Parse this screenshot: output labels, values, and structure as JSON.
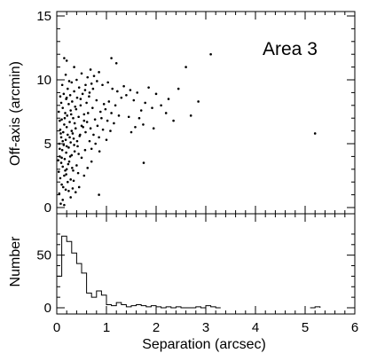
{
  "chart_data": [
    {
      "type": "scatter",
      "ylabel": "Off-axis (arcmin)",
      "annotation": "Area 3",
      "xlim": [
        0,
        6
      ],
      "ylim": [
        0,
        15
      ],
      "x_ticks": [
        "0",
        "1",
        "2",
        "3",
        "4",
        "5",
        "6"
      ],
      "y_ticks": [
        "0",
        "5",
        "10",
        "15"
      ],
      "points": [
        [
          0.08,
          0.3
        ],
        [
          0.12,
          0.6
        ],
        [
          0.05,
          1.1
        ],
        [
          0.18,
          1.4
        ],
        [
          0.1,
          1.8
        ],
        [
          0.22,
          2.0
        ],
        [
          0.07,
          2.3
        ],
        [
          0.15,
          2.5
        ],
        [
          0.28,
          2.2
        ],
        [
          0.04,
          2.8
        ],
        [
          0.2,
          3.0
        ],
        [
          0.12,
          3.2
        ],
        [
          0.33,
          2.9
        ],
        [
          0.09,
          3.5
        ],
        [
          0.25,
          3.6
        ],
        [
          0.16,
          3.8
        ],
        [
          0.4,
          3.3
        ],
        [
          0.06,
          4.0
        ],
        [
          0.3,
          4.1
        ],
        [
          0.19,
          4.3
        ],
        [
          0.11,
          4.5
        ],
        [
          0.36,
          4.4
        ],
        [
          0.24,
          4.7
        ],
        [
          0.14,
          4.9
        ],
        [
          0.05,
          5.0
        ],
        [
          0.42,
          4.8
        ],
        [
          0.28,
          5.1
        ],
        [
          0.18,
          5.3
        ],
        [
          0.09,
          5.5
        ],
        [
          0.34,
          5.4
        ],
        [
          0.22,
          5.7
        ],
        [
          0.13,
          5.9
        ],
        [
          0.46,
          5.6
        ],
        [
          0.3,
          6.0
        ],
        [
          0.07,
          6.1
        ],
        [
          0.2,
          6.3
        ],
        [
          0.38,
          6.2
        ],
        [
          0.15,
          6.5
        ],
        [
          0.26,
          6.7
        ],
        [
          0.5,
          6.4
        ],
        [
          0.1,
          6.9
        ],
        [
          0.33,
          7.0
        ],
        [
          0.21,
          7.2
        ],
        [
          0.44,
          7.1
        ],
        [
          0.17,
          7.4
        ],
        [
          0.28,
          7.6
        ],
        [
          0.55,
          7.3
        ],
        [
          0.12,
          7.8
        ],
        [
          0.37,
          7.9
        ],
        [
          0.24,
          8.1
        ],
        [
          0.48,
          8.0
        ],
        [
          0.31,
          8.3
        ],
        [
          0.6,
          8.2
        ],
        [
          0.19,
          8.5
        ],
        [
          0.41,
          8.6
        ],
        [
          0.27,
          8.8
        ],
        [
          0.52,
          8.9
        ],
        [
          0.35,
          9.1
        ],
        [
          0.66,
          9.0
        ],
        [
          0.22,
          9.3
        ],
        [
          0.45,
          9.4
        ],
        [
          0.58,
          9.6
        ],
        [
          0.3,
          9.8
        ],
        [
          0.7,
          9.7
        ],
        [
          0.4,
          10.0
        ],
        [
          0.62,
          10.2
        ],
        [
          0.18,
          10.4
        ],
        [
          0.5,
          10.5
        ],
        [
          0.75,
          10.3
        ],
        [
          0.2,
          11.5
        ],
        [
          0.35,
          11.0
        ],
        [
          0.85,
          10.6
        ],
        [
          0.68,
          10.8
        ],
        [
          0.15,
          11.7
        ],
        [
          1.1,
          11.7
        ],
        [
          1.2,
          11.3
        ],
        [
          0.55,
          6.8
        ],
        [
          0.63,
          7.4
        ],
        [
          0.72,
          7.8
        ],
        [
          0.8,
          8.4
        ],
        [
          0.68,
          6.2
        ],
        [
          0.77,
          6.9
        ],
        [
          0.88,
          7.5
        ],
        [
          0.95,
          8.1
        ],
        [
          0.58,
          5.9
        ],
        [
          0.66,
          5.2
        ],
        [
          0.74,
          5.7
        ],
        [
          0.82,
          6.4
        ],
        [
          0.9,
          7.0
        ],
        [
          0.98,
          7.7
        ],
        [
          1.05,
          8.3
        ],
        [
          0.85,
          5.5
        ],
        [
          0.93,
          6.1
        ],
        [
          1.02,
          6.8
        ],
        [
          1.1,
          7.4
        ],
        [
          1.18,
          8.0
        ],
        [
          0.7,
          4.6
        ],
        [
          0.78,
          5.0
        ],
        [
          0.86,
          4.4
        ],
        [
          1.0,
          5.3
        ],
        [
          1.08,
          6.0
        ],
        [
          1.15,
          6.6
        ],
        [
          1.25,
          7.2
        ],
        [
          1.3,
          8.6
        ],
        [
          1.22,
          9.1
        ],
        [
          1.35,
          9.5
        ],
        [
          1.12,
          9.3
        ],
        [
          1.4,
          8.8
        ],
        [
          1.48,
          9.2
        ],
        [
          1.55,
          8.4
        ],
        [
          1.62,
          9.0
        ],
        [
          1.7,
          7.6
        ],
        [
          1.78,
          8.2
        ],
        [
          1.85,
          9.4
        ],
        [
          1.92,
          7.8
        ],
        [
          2.0,
          8.9
        ],
        [
          1.45,
          7.1
        ],
        [
          1.58,
          6.3
        ],
        [
          1.66,
          7.0
        ],
        [
          1.74,
          6.5
        ],
        [
          1.5,
          5.9
        ],
        [
          2.1,
          8.0
        ],
        [
          2.25,
          8.5
        ],
        [
          2.45,
          9.3
        ],
        [
          2.6,
          11.0
        ],
        [
          2.85,
          8.3
        ],
        [
          1.95,
          6.2
        ],
        [
          2.2,
          7.4
        ],
        [
          2.35,
          6.8
        ],
        [
          2.7,
          7.2
        ],
        [
          3.1,
          12.0
        ],
        [
          5.2,
          5.8
        ],
        [
          1.75,
          3.5
        ],
        [
          0.85,
          1.0
        ],
        [
          0.55,
          2.5
        ],
        [
          0.45,
          1.6
        ],
        [
          0.62,
          3.1
        ],
        [
          0.38,
          1.2
        ],
        [
          0.5,
          3.9
        ],
        [
          0.28,
          0.8
        ],
        [
          0.32,
          1.5
        ],
        [
          0.43,
          2.7
        ],
        [
          0.7,
          3.6
        ],
        [
          0.15,
          0.2
        ],
        [
          0.06,
          6.8
        ],
        [
          0.04,
          7.5
        ],
        [
          0.09,
          8.2
        ],
        [
          0.14,
          8.9
        ],
        [
          0.11,
          9.6
        ],
        [
          0.25,
          9.9
        ],
        [
          0.06,
          4.6
        ],
        [
          0.03,
          3.7
        ],
        [
          0.17,
          2.9
        ],
        [
          0.23,
          3.4
        ],
        [
          0.27,
          4.0
        ],
        [
          0.35,
          4.9
        ],
        [
          0.41,
          5.2
        ],
        [
          0.47,
          5.7
        ],
        [
          0.53,
          6.3
        ],
        [
          0.61,
          6.7
        ],
        [
          0.36,
          6.6
        ],
        [
          0.29,
          7.3
        ],
        [
          0.16,
          7.0
        ],
        [
          0.08,
          5.8
        ],
        [
          0.12,
          5.2
        ],
        [
          0.2,
          4.8
        ],
        [
          0.26,
          5.5
        ],
        [
          0.32,
          5.8
        ],
        [
          0.39,
          7.7
        ],
        [
          0.48,
          8.5
        ],
        [
          0.57,
          9.2
        ],
        [
          0.65,
          8.7
        ],
        [
          0.73,
          9.3
        ],
        [
          0.81,
          9.9
        ],
        [
          0.92,
          9.6
        ],
        [
          1.03,
          9.8
        ],
        [
          0.13,
          1.6
        ],
        [
          0.24,
          1.3
        ],
        [
          0.34,
          2.1
        ],
        [
          0.19,
          2.6
        ],
        [
          0.1,
          3.9
        ],
        [
          0.31,
          3.1
        ],
        [
          0.44,
          4.2
        ],
        [
          0.57,
          4.5
        ],
        [
          0.07,
          8.7
        ],
        [
          0.2,
          8.6
        ]
      ]
    },
    {
      "type": "histogram",
      "xlabel": "Separation (arcsec)",
      "ylabel": "Number",
      "xlim": [
        0,
        6
      ],
      "ylim": [
        0,
        75
      ],
      "x_ticks": [
        "0",
        "1",
        "2",
        "3",
        "4",
        "5",
        "6"
      ],
      "y_ticks": [
        "0",
        "50"
      ],
      "bin_width": 0.1,
      "bins_start": [
        0.0,
        0.1,
        0.2,
        0.3,
        0.4,
        0.5,
        0.6,
        0.7,
        0.8,
        0.9,
        1.0,
        1.1,
        1.2,
        1.3,
        1.4,
        1.5,
        1.6,
        1.7,
        1.8,
        1.9,
        2.0,
        2.1,
        2.2,
        2.3,
        2.4,
        2.5,
        2.6,
        2.7,
        2.8,
        2.9,
        3.0,
        3.1,
        3.2,
        5.1,
        5.2
      ],
      "counts": [
        30,
        68,
        63,
        52,
        42,
        33,
        14,
        10,
        16,
        12,
        3,
        2,
        5,
        3,
        1,
        2,
        3,
        2,
        1,
        2,
        1,
        0,
        1,
        0,
        1,
        0,
        0,
        0,
        1,
        0,
        2,
        1,
        0,
        0,
        1
      ]
    }
  ]
}
